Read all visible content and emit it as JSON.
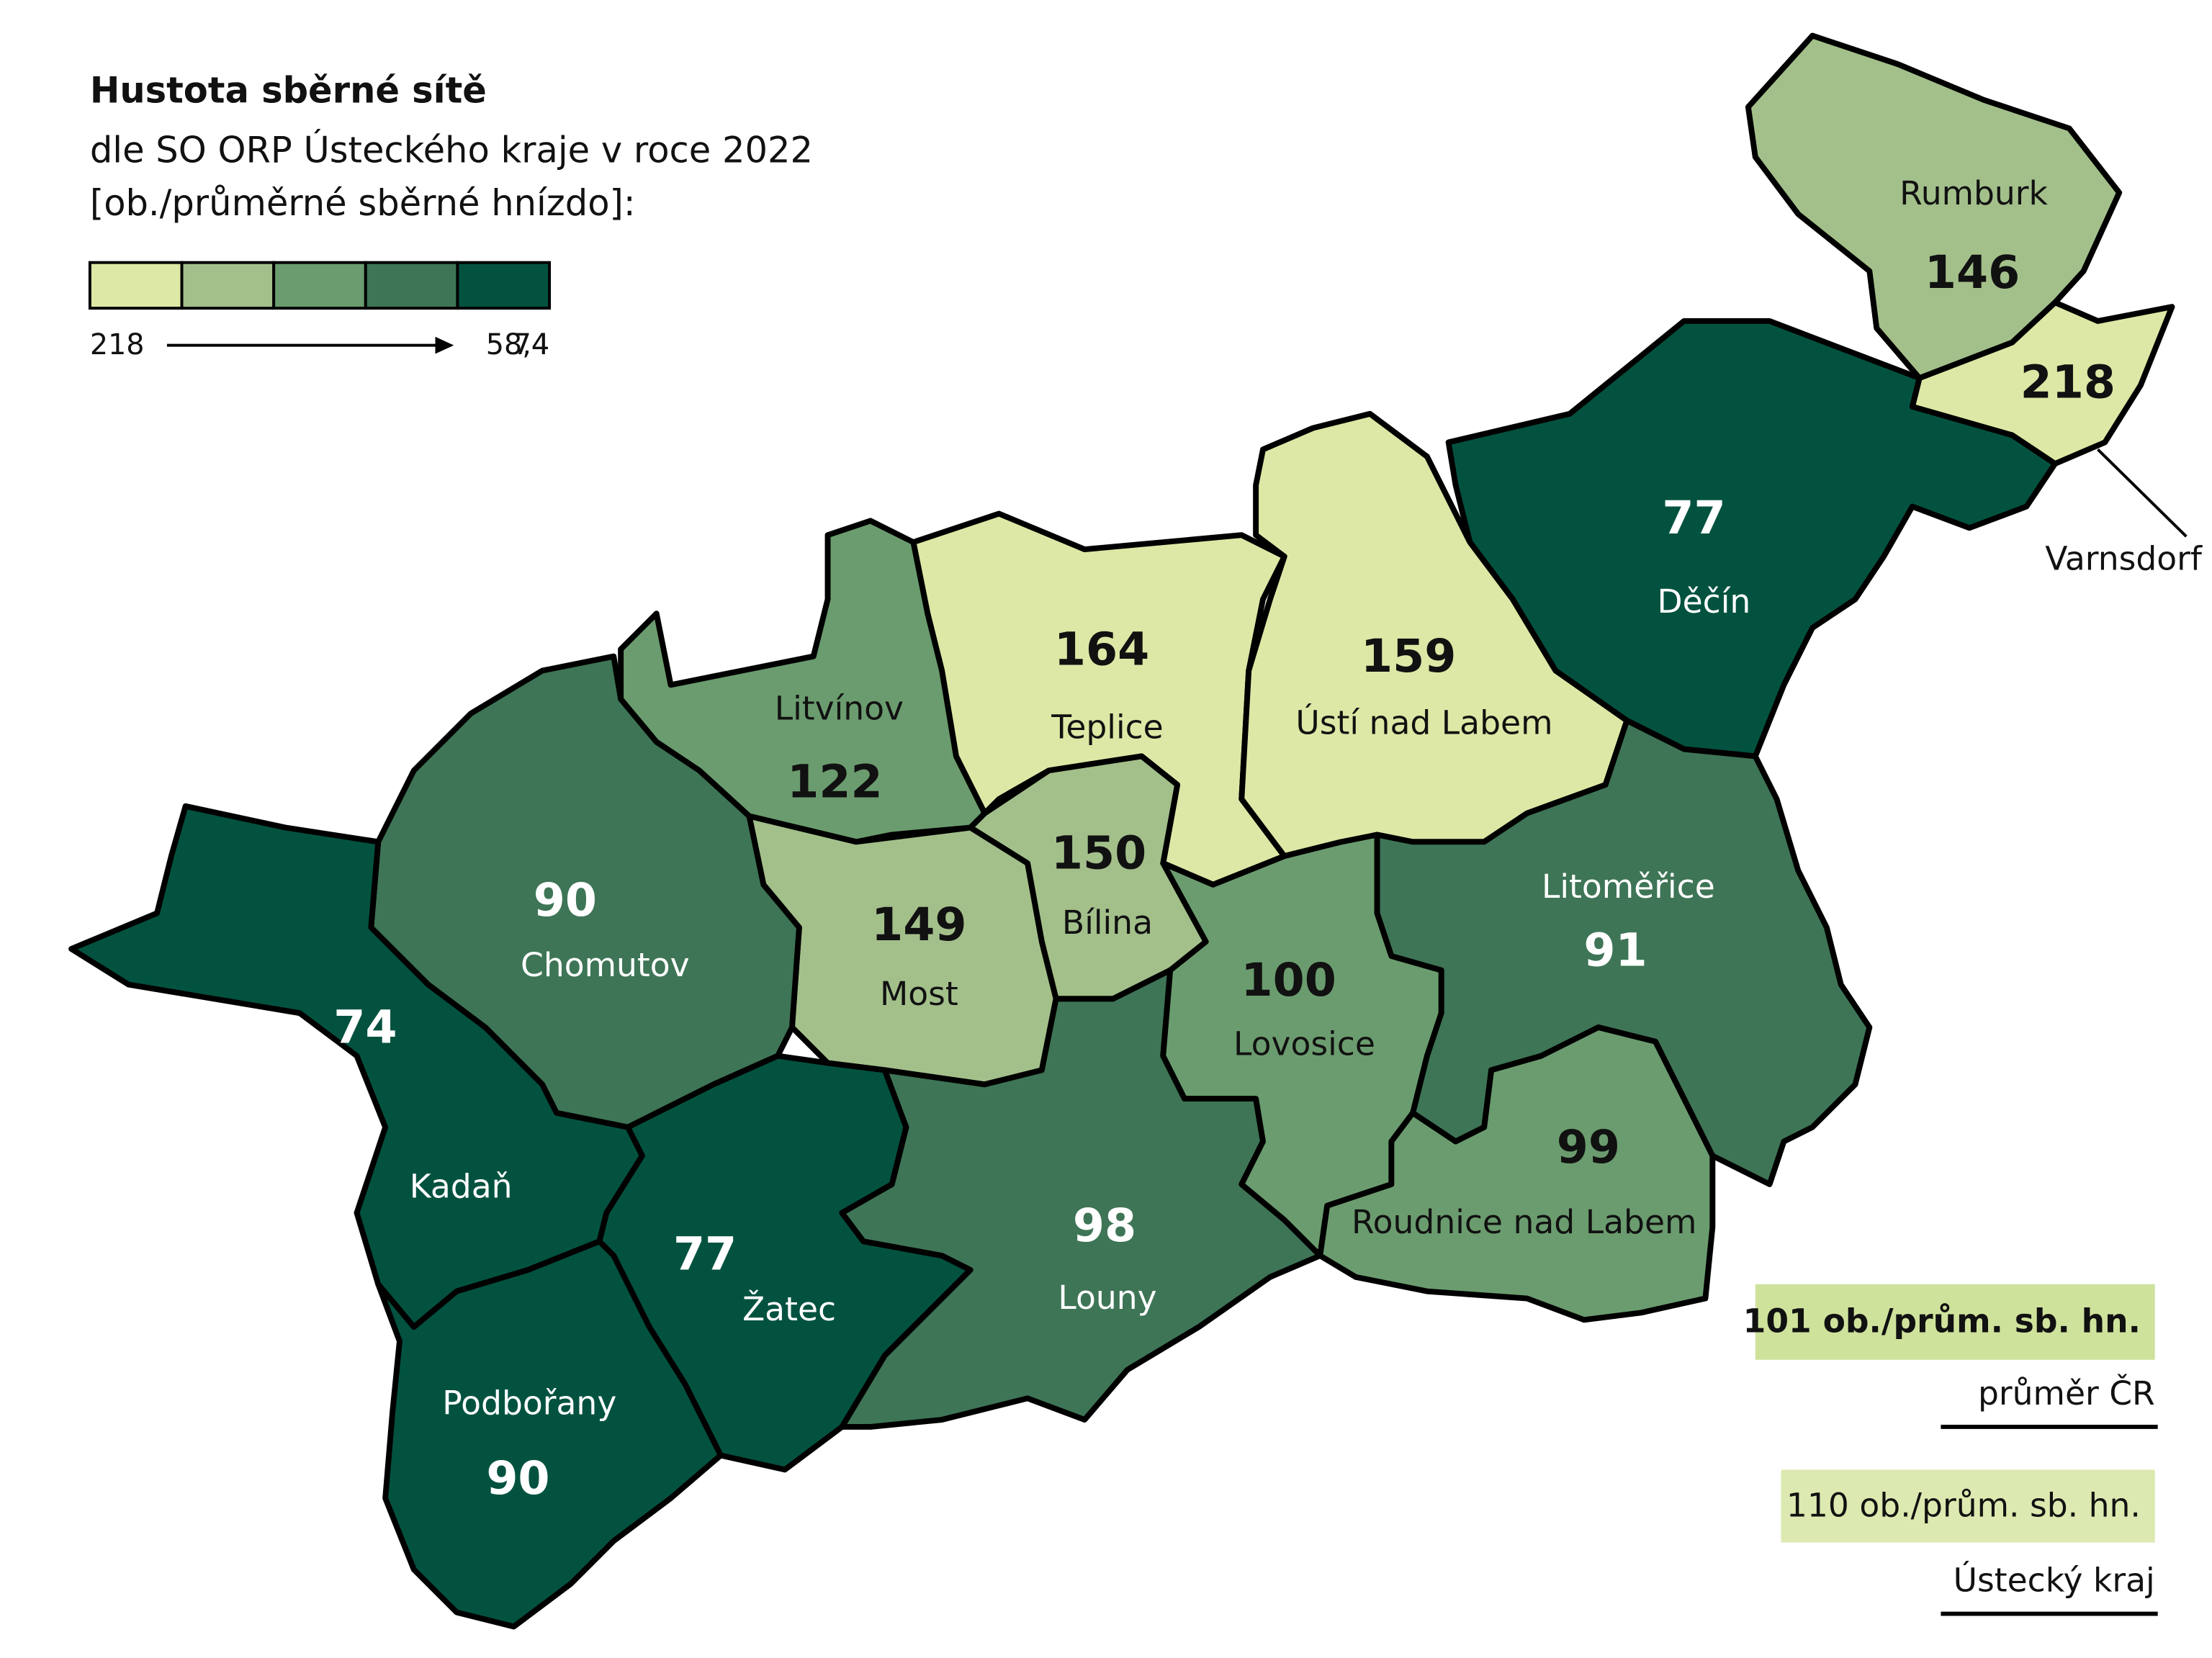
{
  "title": "Hustota sběrné sítě",
  "subtitle": [
    "dle SO ORP Ústeckého kraje v roce 2022",
    "[ob./průměrné sběrné hnízdo]:"
  ],
  "legend": {
    "colors": [
      "#dde8a6",
      "#a3c08b",
      "#6b9c6f",
      "#3e7556",
      "#035240"
    ],
    "labels": [
      "218",
      "58,4",
      "74"
    ]
  },
  "regions": [
    {
      "name": "Rumburk",
      "value": 146,
      "color": "#a3c08b"
    },
    {
      "name": "Varnsdorf",
      "value": 218,
      "color": "#dde8a6"
    },
    {
      "name": "Děčín",
      "value": 77,
      "color": "#035240"
    },
    {
      "name": "Teplice",
      "value": 164,
      "color": "#dde8a6"
    },
    {
      "name": "Ústí nad Labem",
      "value": 159,
      "color": "#dde8a6"
    },
    {
      "name": "Litvínov",
      "value": 122,
      "color": "#6b9c6f"
    },
    {
      "name": "Bílina",
      "value": 150,
      "color": "#a3c08b"
    },
    {
      "name": "Most",
      "value": 149,
      "color": "#a3c08b"
    },
    {
      "name": "Chomutov",
      "value": 90,
      "color": "#3e7556"
    },
    {
      "name": "Kadaň",
      "value": 74,
      "color": "#035240"
    },
    {
      "name": "Žatec",
      "value": 77,
      "color": "#035240"
    },
    {
      "name": "Podbořany",
      "value": 90,
      "color": "#035240"
    },
    {
      "name": "Louny",
      "value": 98,
      "color": "#3e7556"
    },
    {
      "name": "Lovosice",
      "value": 100,
      "color": "#6b9c6f"
    },
    {
      "name": "Litoměřice",
      "value": 91,
      "color": "#3e7556"
    },
    {
      "name": "Roudnice nad Labem",
      "value": 99,
      "color": "#6b9c6f"
    }
  ],
  "annotations": [
    {
      "text": "101 ob./prům. sb. hn.",
      "caption": "průměr ČR",
      "color": "#cfe29c"
    },
    {
      "text": "110 ob./prům. sb. hn.",
      "caption": "Ústecký kraj",
      "color": "#dce9b0"
    }
  ]
}
